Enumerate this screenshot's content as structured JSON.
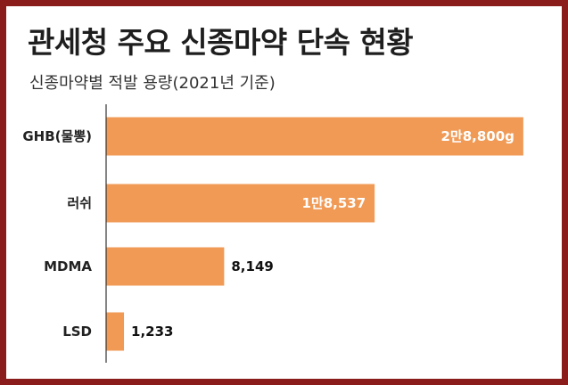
{
  "header": {
    "title": "관세청 주요 신종마약 단속 현황",
    "subtitle": "신종마약별 적발 용량(2021년 기준)"
  },
  "colors": {
    "frame": "#8a1c1c",
    "bar": "#f09a56",
    "axis": "#333333"
  },
  "chart_data": {
    "type": "bar",
    "orientation": "horizontal",
    "title": "관세청 주요 신종마약 단속 현황",
    "subtitle": "신종마약별 적발 용량(2021년 기준)",
    "categories": [
      "GHB(물뽕)",
      "러쉬",
      "MDMA",
      "LSD"
    ],
    "values": [
      28800,
      18537,
      8149,
      1233
    ],
    "value_labels": [
      "2만8,800g",
      "1만8,537",
      "8,149",
      "1,233"
    ],
    "label_inside": [
      true,
      true,
      false,
      false
    ],
    "xlim": [
      0,
      30000
    ],
    "grid": false,
    "legend": "none"
  }
}
